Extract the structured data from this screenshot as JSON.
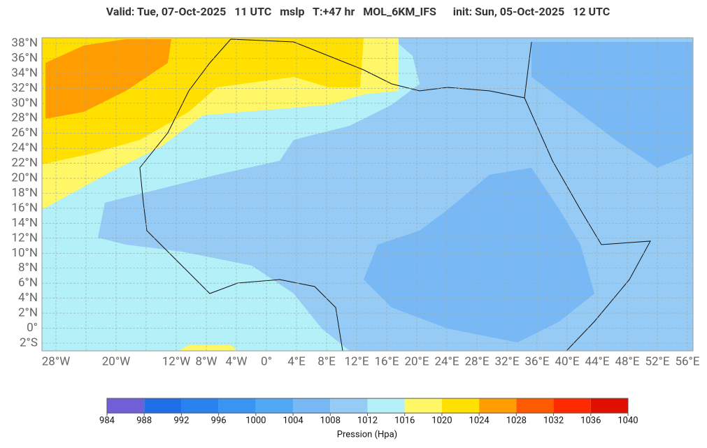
{
  "header": {
    "title": "Valid: Tue, 07-Oct-2025   11 UTC   mslp   T:+47 hr   MOL_6KM_IFS      init: Sun, 05-Oct-2025   12 UTC"
  },
  "map": {
    "lat_labels": [
      "38°N",
      "36°N",
      "34°N",
      "32°N",
      "30°N",
      "28°N",
      "26°N",
      "24°N",
      "22°N",
      "20°N",
      "18°N",
      "16°N",
      "14°N",
      "12°N",
      "10°N",
      "8°N",
      "6°N",
      "4°N",
      "2°N",
      "0°",
      "2°S"
    ],
    "lon_labels": [
      "28°W",
      "20°W",
      "12°W",
      "8°W",
      "4°W",
      "0°",
      "4°E",
      "8°E",
      "12°E",
      "16°E",
      "20°E",
      "24°E",
      "28°E",
      "32°E",
      "36°E",
      "40°E",
      "44°E",
      "48°E",
      "52°E",
      "56°E"
    ]
  },
  "colorbar": {
    "colors": [
      "#7060d8",
      "#1f6fe6",
      "#2a82ee",
      "#3a95f2",
      "#52a8f4",
      "#78b8f4",
      "#96cbf6",
      "#b3f0f8",
      "#fff766",
      "#ffe000",
      "#ff9d00",
      "#ff5a00",
      "#ff2a00",
      "#e01000"
    ],
    "ticks": [
      984,
      988,
      992,
      996,
      1000,
      1004,
      1008,
      1012,
      1016,
      1020,
      1024,
      1028,
      1032,
      1036,
      1040
    ],
    "label": "Pression (Hpa)"
  }
}
